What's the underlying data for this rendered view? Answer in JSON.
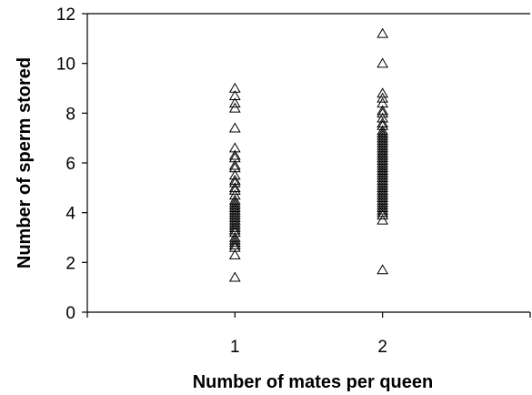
{
  "chart_data": {
    "type": "scatter",
    "title": "",
    "xlabel": "Number of mates per queen",
    "ylabel": "Number of sperm stored",
    "xlim": [
      0,
      3
    ],
    "ylim": [
      0,
      12
    ],
    "x_ticks": [
      "1",
      "2"
    ],
    "y_ticks": [
      "0",
      "2",
      "4",
      "6",
      "8",
      "10",
      "12"
    ],
    "grid": false,
    "marker": "open-triangle",
    "series": [
      {
        "x": 1,
        "values": [
          9.0,
          8.7,
          8.4,
          8.2,
          7.4,
          6.6,
          6.3,
          6.2,
          5.9,
          5.8,
          5.5,
          5.3,
          5.2,
          5.0,
          4.9,
          4.7,
          4.5,
          4.4,
          4.3,
          4.2,
          4.1,
          4.0,
          3.9,
          3.8,
          3.7,
          3.6,
          3.5,
          3.4,
          3.3,
          3.2,
          3.0,
          2.9,
          2.8,
          2.7,
          2.6,
          2.3,
          1.4
        ]
      },
      {
        "x": 2,
        "values": [
          11.2,
          10.0,
          8.8,
          8.6,
          8.4,
          8.1,
          8.0,
          7.8,
          7.6,
          7.5,
          7.3,
          7.2,
          7.1,
          7.0,
          6.9,
          6.8,
          6.7,
          6.6,
          6.5,
          6.4,
          6.3,
          6.2,
          6.1,
          6.0,
          5.9,
          5.8,
          5.7,
          5.6,
          5.5,
          5.4,
          5.3,
          5.2,
          5.1,
          5.0,
          4.9,
          4.8,
          4.7,
          4.6,
          4.5,
          4.4,
          4.3,
          4.2,
          4.1,
          4.0,
          3.9,
          3.7,
          1.7
        ]
      }
    ]
  }
}
